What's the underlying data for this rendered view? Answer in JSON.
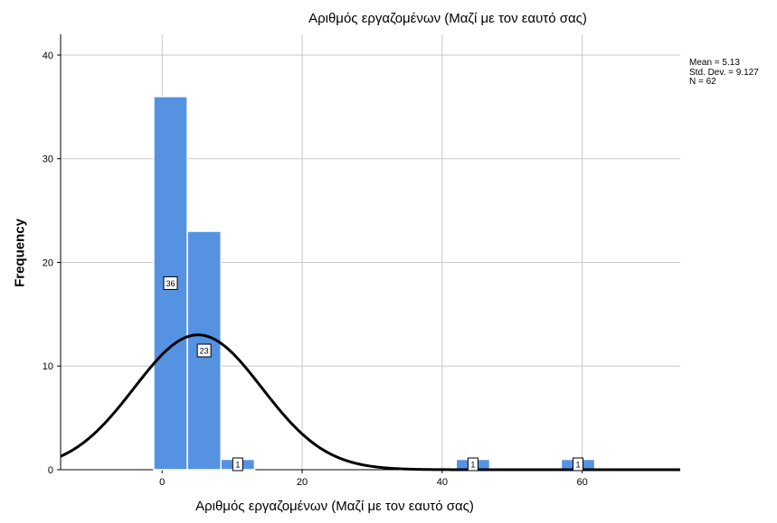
{
  "chart_data": {
    "type": "bar",
    "title": "Αριθμός εργαζομένων (Μαζί με τον εαυτό σας)",
    "xlabel": "Αριθμός εργαζομένων (Μαζί με τον εαυτό σας)",
    "ylabel": "Frequency",
    "xlim": [
      -14.5,
      74
    ],
    "ylim": [
      0,
      42
    ],
    "x_ticks": [
      0,
      20,
      40,
      60
    ],
    "y_ticks": [
      0,
      10,
      20,
      30,
      40
    ],
    "bins": [
      {
        "start": -1.2,
        "end": 3.6,
        "value": 36,
        "label": "36"
      },
      {
        "start": 3.6,
        "end": 8.4,
        "value": 23,
        "label": "23"
      },
      {
        "start": 8.4,
        "end": 13.2,
        "value": 1,
        "label": "1"
      },
      {
        "start": 42.0,
        "end": 46.8,
        "value": 1,
        "label": "1"
      },
      {
        "start": 57.0,
        "end": 61.8,
        "value": 1,
        "label": "1"
      }
    ],
    "normal_curve": {
      "mean": 5.13,
      "sd": 9.127,
      "n": 62
    },
    "stats_text": [
      "Mean = 5.13",
      "Std. Dev. = 9.127",
      "N = 62"
    ],
    "grid": true,
    "colors": {
      "bar": "#5592e2",
      "bar_edge": "#ffffff",
      "curve": "#000000",
      "grid": "#c8c8c8"
    }
  }
}
